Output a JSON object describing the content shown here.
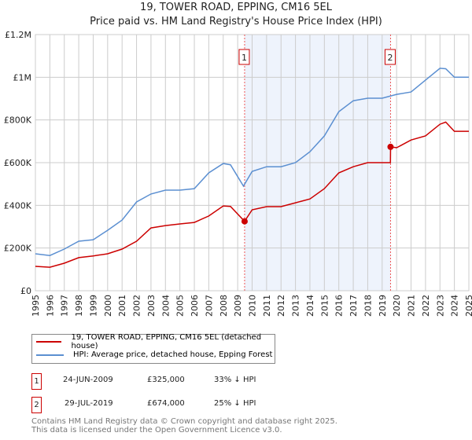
{
  "title_line1": "19, TOWER ROAD, EPPING, CM16 5EL",
  "title_line2": "Price paid vs. HM Land Registry's House Price Index (HPI)",
  "colors": {
    "property": "#cc0000",
    "hpi": "#5b8fd1",
    "shade": "#eef3fc"
  },
  "chart_data": {
    "type": "line",
    "xlim": [
      1995,
      2025
    ],
    "ylim": [
      0,
      1200000
    ],
    "x_ticks": [
      "1995",
      "1996",
      "1997",
      "1998",
      "1999",
      "2000",
      "2001",
      "2002",
      "2003",
      "2004",
      "2005",
      "2006",
      "2007",
      "2008",
      "2009",
      "2010",
      "2011",
      "2012",
      "2013",
      "2014",
      "2015",
      "2016",
      "2017",
      "2018",
      "2019",
      "2020",
      "2021",
      "2022",
      "2023",
      "2024",
      "2025"
    ],
    "y_ticks": [
      {
        "v": 0,
        "label": "£0"
      },
      {
        "v": 200000,
        "label": "£200K"
      },
      {
        "v": 400000,
        "label": "£400K"
      },
      {
        "v": 600000,
        "label": "£600K"
      },
      {
        "v": 800000,
        "label": "£800K"
      },
      {
        "v": 1000000,
        "label": "£1M"
      },
      {
        "v": 1200000,
        "label": "£1.2M"
      }
    ],
    "grid": true,
    "shaded_range": [
      2009.48,
      2019.58
    ],
    "series": [
      {
        "name": "HPI: Average price, detached house, Epping Forest",
        "color": "#5b8fd1",
        "x": [
          1995,
          1996,
          1997,
          1998,
          1999,
          2000,
          2001,
          2002,
          2003,
          2004,
          2005,
          2006,
          2007,
          2008,
          2008.5,
          2009.4,
          2010,
          2011,
          2012,
          2013,
          2014,
          2015,
          2016,
          2017,
          2018,
          2019,
          2020,
          2021,
          2022,
          2023,
          2023.4,
          2024,
          2025
        ],
        "y": [
          173000,
          165000,
          195000,
          232000,
          239000,
          283000,
          331000,
          416000,
          453000,
          471000,
          471000,
          478000,
          552000,
          596000,
          590000,
          490000,
          559000,
          581000,
          581000,
          600000,
          651000,
          725000,
          839000,
          890000,
          902000,
          902000,
          920000,
          931000,
          987000,
          1042000,
          1040000,
          1000000,
          1000000
        ]
      },
      {
        "name": "19, TOWER ROAD, EPPING, CM16 5EL (detached house)",
        "color": "#cc0000",
        "x": [
          1995,
          1996,
          1997,
          1998,
          1999,
          2000,
          2001,
          2002,
          2003,
          2004,
          2005,
          2006,
          2007,
          2008,
          2008.5,
          2009.48,
          2010,
          2011,
          2012,
          2013,
          2014,
          2015,
          2016,
          2017,
          2018,
          2019,
          2019.57,
          2019.58,
          2020,
          2021,
          2022,
          2023,
          2023.4,
          2024,
          2025
        ],
        "y": [
          114000,
          110000,
          129000,
          155000,
          163000,
          173000,
          195000,
          232000,
          294000,
          305000,
          313000,
          320000,
          350000,
          397000,
          395000,
          325000,
          379000,
          394000,
          394000,
          412000,
          430000,
          478000,
          552000,
          581000,
          600000,
          600000,
          600000,
          674000,
          670000,
          706000,
          725000,
          780000,
          790000,
          747000,
          747000
        ]
      }
    ],
    "markers": [
      {
        "id": "1",
        "x": 2009.48,
        "y": 325000
      },
      {
        "id": "2",
        "x": 2019.58,
        "y": 674000
      }
    ]
  },
  "legend": {
    "property": "19, TOWER ROAD, EPPING, CM16 5EL (detached house)",
    "hpi": "HPI: Average price, detached house, Epping Forest"
  },
  "transactions": [
    {
      "id": "1",
      "date": "24-JUN-2009",
      "price": "£325,000",
      "hpi": "33% ↓ HPI"
    },
    {
      "id": "2",
      "date": "29-JUL-2019",
      "price": "£674,000",
      "hpi": "25% ↓ HPI"
    }
  ],
  "footer_line1": "Contains HM Land Registry data © Crown copyright and database right 2025.",
  "footer_line2": "This data is licensed under the Open Government Licence v3.0."
}
